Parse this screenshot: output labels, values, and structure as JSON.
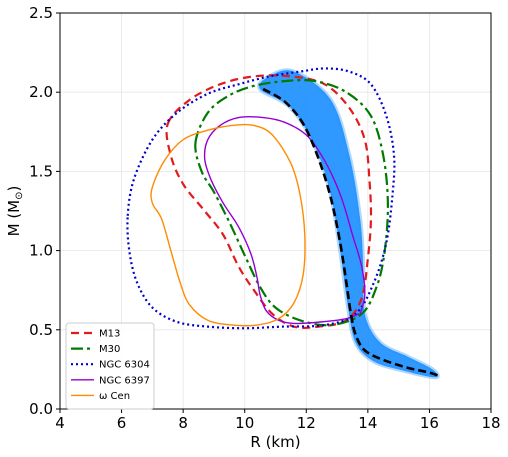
{
  "chart_data": {
    "type": "line",
    "xlabel": "R (km)",
    "ylabel_main": "M (M",
    "ylabel_sub": "⊙",
    "ylabel_end": ")",
    "xlim": [
      4,
      18
    ],
    "ylim": [
      0.0,
      2.5
    ],
    "xticks": [
      4,
      6,
      8,
      10,
      12,
      14,
      16,
      18
    ],
    "yticks": [
      0.0,
      0.5,
      1.0,
      1.5,
      2.0,
      2.5
    ],
    "xtick_labels": [
      "4",
      "6",
      "8",
      "10",
      "12",
      "14",
      "16",
      "18"
    ],
    "ytick_labels": [
      "0.0",
      "0.5",
      "1.0",
      "1.5",
      "2.0",
      "2.5"
    ],
    "grid": true,
    "legend_position": "lower-left",
    "band": {
      "color": "#1e90ff",
      "left": [
        [
          10.5,
          2.02
        ],
        [
          11.5,
          1.9
        ],
        [
          12.3,
          1.65
        ],
        [
          12.8,
          1.35
        ],
        [
          13.1,
          1.0
        ],
        [
          13.35,
          0.65
        ],
        [
          13.6,
          0.42
        ],
        [
          14.2,
          0.3
        ],
        [
          15.2,
          0.24
        ],
        [
          16.2,
          0.2
        ]
      ],
      "right": [
        [
          16.1,
          0.25
        ],
        [
          15.3,
          0.33
        ],
        [
          14.4,
          0.42
        ],
        [
          13.9,
          0.6
        ],
        [
          13.85,
          0.9
        ],
        [
          13.75,
          1.2
        ],
        [
          13.4,
          1.6
        ],
        [
          12.8,
          1.95
        ],
        [
          11.6,
          2.13
        ],
        [
          10.8,
          2.1
        ]
      ]
    },
    "series": [
      {
        "name": "M13",
        "color": "#e31a1c",
        "dash": "8,5",
        "width": 2.2,
        "closed": true,
        "points": [
          [
            7.5,
            1.8
          ],
          [
            8.2,
            1.95
          ],
          [
            9.2,
            2.05
          ],
          [
            10.3,
            2.1
          ],
          [
            11.5,
            2.1
          ],
          [
            12.6,
            2.05
          ],
          [
            13.4,
            1.9
          ],
          [
            13.9,
            1.7
          ],
          [
            14.05,
            1.45
          ],
          [
            14.1,
            1.2
          ],
          [
            14.0,
            0.95
          ],
          [
            13.8,
            0.7
          ],
          [
            13.3,
            0.56
          ],
          [
            12.4,
            0.52
          ],
          [
            11.6,
            0.52
          ],
          [
            10.9,
            0.6
          ],
          [
            10.3,
            0.75
          ],
          [
            9.8,
            0.9
          ],
          [
            9.3,
            1.1
          ],
          [
            8.7,
            1.25
          ],
          [
            8.0,
            1.42
          ],
          [
            7.6,
            1.6
          ]
        ]
      },
      {
        "name": "M30",
        "color": "#007a00",
        "dash": "12,4,3,4",
        "width": 2.2,
        "closed": true,
        "points": [
          [
            8.4,
            1.68
          ],
          [
            8.8,
            1.87
          ],
          [
            9.5,
            1.98
          ],
          [
            10.3,
            2.04
          ],
          [
            11.3,
            2.07
          ],
          [
            12.3,
            2.07
          ],
          [
            13.3,
            2.0
          ],
          [
            14.1,
            1.85
          ],
          [
            14.5,
            1.6
          ],
          [
            14.65,
            1.3
          ],
          [
            14.55,
            1.0
          ],
          [
            14.3,
            0.78
          ],
          [
            13.8,
            0.6
          ],
          [
            12.8,
            0.53
          ],
          [
            11.8,
            0.56
          ],
          [
            11.0,
            0.64
          ],
          [
            10.5,
            0.77
          ],
          [
            10.0,
            0.97
          ],
          [
            9.5,
            1.18
          ],
          [
            9.0,
            1.37
          ],
          [
            8.6,
            1.5
          ]
        ]
      },
      {
        "name": "NGC 6304",
        "color": "#0000cd",
        "dash": "2,3",
        "width": 2.2,
        "closed": true,
        "points": [
          [
            6.2,
            1.22
          ],
          [
            6.4,
            1.45
          ],
          [
            7.0,
            1.7
          ],
          [
            7.8,
            1.87
          ],
          [
            8.8,
            1.99
          ],
          [
            9.8,
            2.05
          ],
          [
            10.8,
            2.1
          ],
          [
            11.8,
            2.13
          ],
          [
            12.6,
            2.15
          ],
          [
            13.4,
            2.13
          ],
          [
            14.1,
            2.05
          ],
          [
            14.6,
            1.85
          ],
          [
            14.85,
            1.6
          ],
          [
            14.8,
            1.35
          ],
          [
            14.6,
            1.05
          ],
          [
            14.2,
            0.8
          ],
          [
            13.6,
            0.6
          ],
          [
            12.6,
            0.53
          ],
          [
            11.2,
            0.52
          ],
          [
            10.0,
            0.51
          ],
          [
            8.8,
            0.52
          ],
          [
            7.8,
            0.55
          ],
          [
            7.0,
            0.64
          ],
          [
            6.5,
            0.8
          ],
          [
            6.25,
            1.0
          ]
        ]
      },
      {
        "name": "NGC 6397",
        "color": "#9400d3",
        "dash": "",
        "width": 1.4,
        "closed": false,
        "points": [
          [
            13.7,
            0.6
          ],
          [
            13.3,
            0.57
          ],
          [
            12.5,
            0.55
          ],
          [
            11.6,
            0.54
          ],
          [
            11.1,
            0.56
          ],
          [
            10.7,
            0.62
          ],
          [
            10.5,
            0.72
          ],
          [
            10.4,
            0.83
          ],
          [
            10.2,
            0.98
          ],
          [
            9.8,
            1.15
          ],
          [
            9.3,
            1.3
          ],
          [
            8.9,
            1.45
          ],
          [
            8.7,
            1.58
          ],
          [
            8.8,
            1.7
          ],
          [
            9.2,
            1.79
          ],
          [
            9.8,
            1.84
          ],
          [
            10.6,
            1.84
          ],
          [
            11.3,
            1.81
          ],
          [
            12.0,
            1.73
          ],
          [
            12.5,
            1.6
          ],
          [
            12.9,
            1.45
          ],
          [
            13.2,
            1.3
          ],
          [
            13.5,
            1.1
          ],
          [
            13.8,
            0.9
          ],
          [
            13.9,
            0.72
          ],
          [
            13.75,
            0.6
          ]
        ]
      },
      {
        "name": "ω Cen",
        "color": "#ff8c00",
        "dash": "",
        "width": 1.4,
        "closed": true,
        "points": [
          [
            7.0,
            1.4
          ],
          [
            7.4,
            1.57
          ],
          [
            8.0,
            1.7
          ],
          [
            8.8,
            1.76
          ],
          [
            9.6,
            1.79
          ],
          [
            10.3,
            1.79
          ],
          [
            10.9,
            1.73
          ],
          [
            11.5,
            1.55
          ],
          [
            11.8,
            1.35
          ],
          [
            11.95,
            1.1
          ],
          [
            11.9,
            0.85
          ],
          [
            11.6,
            0.67
          ],
          [
            11.1,
            0.57
          ],
          [
            10.4,
            0.53
          ],
          [
            9.6,
            0.53
          ],
          [
            8.8,
            0.56
          ],
          [
            8.2,
            0.66
          ],
          [
            7.9,
            0.8
          ],
          [
            7.6,
            1.0
          ],
          [
            7.3,
            1.2
          ],
          [
            7.0,
            1.3
          ]
        ]
      },
      {
        "name": "",
        "color": "#000000",
        "dash": "8,4",
        "width": 2.6,
        "closed": false,
        "points": [
          [
            10.6,
            2.02
          ],
          [
            11.3,
            1.94
          ],
          [
            11.9,
            1.8
          ],
          [
            12.4,
            1.58
          ],
          [
            12.8,
            1.33
          ],
          [
            13.1,
            1.05
          ],
          [
            13.3,
            0.8
          ],
          [
            13.45,
            0.6
          ],
          [
            13.6,
            0.47
          ],
          [
            13.9,
            0.37
          ],
          [
            14.5,
            0.31
          ],
          [
            15.3,
            0.26
          ],
          [
            16.0,
            0.23
          ],
          [
            16.3,
            0.21
          ]
        ]
      }
    ]
  }
}
